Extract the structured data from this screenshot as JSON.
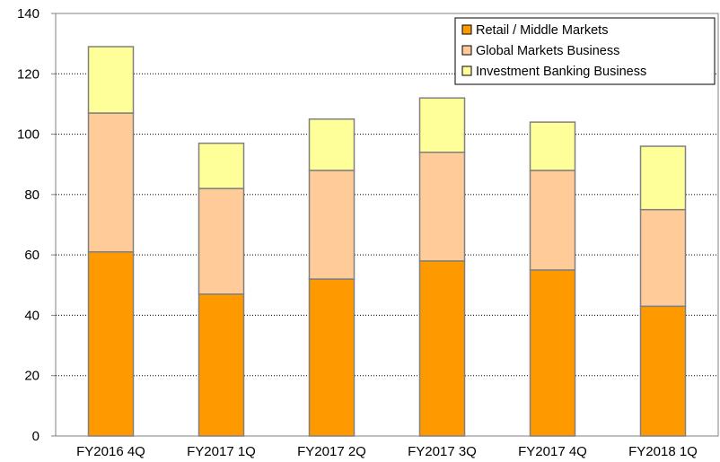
{
  "chart_data": {
    "type": "bar",
    "stacked": true,
    "categories": [
      "FY2016 4Q",
      "FY2017 1Q",
      "FY2017 2Q",
      "FY2017 3Q",
      "FY2017 4Q",
      "FY2018 1Q"
    ],
    "series": [
      {
        "name": "Retail / Middle Markets",
        "values": [
          61,
          47,
          52,
          58,
          55,
          43
        ],
        "color": "#ff9900"
      },
      {
        "name": "Global Markets Business",
        "values": [
          46,
          35,
          36,
          36,
          33,
          32
        ],
        "color": "#ffcc99"
      },
      {
        "name": "Investment Banking Business",
        "values": [
          22,
          15,
          17,
          18,
          16,
          21
        ],
        "color": "#ffff99"
      }
    ],
    "ylim": [
      0,
      140
    ],
    "yticks": [
      0,
      20,
      40,
      60,
      80,
      100,
      120,
      140
    ],
    "grid": "horizontal-dotted",
    "legend_position": "top-right",
    "title": "",
    "xlabel": "",
    "ylabel": ""
  }
}
